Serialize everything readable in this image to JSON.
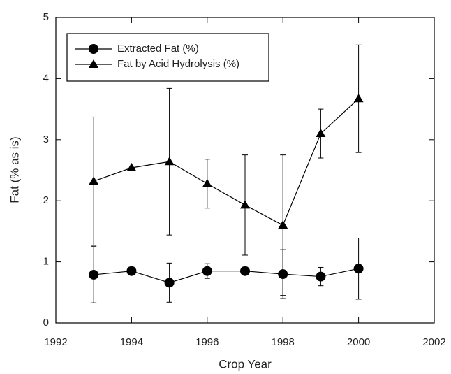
{
  "chart_data": {
    "type": "line",
    "xlabel": "Crop Year",
    "ylabel": "Fat (% as is)",
    "x": [
      1993,
      1994,
      1995,
      1996,
      1997,
      1998,
      1999,
      2000
    ],
    "series": [
      {
        "name": "Extracted Fat (%)",
        "color": "#000000",
        "marker": "circle",
        "values": [
          0.79,
          0.85,
          0.66,
          0.85,
          0.85,
          0.8,
          0.76,
          0.89
        ],
        "errors": [
          0.46,
          null,
          0.32,
          0.12,
          null,
          0.4,
          0.15,
          0.5
        ]
      },
      {
        "name": "Fat by Acid Hydrolysis (%)",
        "color": "#000000",
        "marker": "triangle",
        "values": [
          2.32,
          2.54,
          2.64,
          2.28,
          1.93,
          1.6,
          3.1,
          3.67
        ],
        "errors": [
          1.05,
          null,
          1.2,
          0.4,
          0.82,
          1.15,
          0.4,
          0.88
        ]
      }
    ],
    "xlim": [
      1992,
      2002
    ],
    "xticks": [
      1992,
      1994,
      1996,
      1998,
      2000,
      2002
    ],
    "ylim": [
      0,
      5
    ],
    "yticks": [
      0,
      1,
      2,
      3,
      4,
      5
    ],
    "legend": "upper left",
    "grid": false
  }
}
